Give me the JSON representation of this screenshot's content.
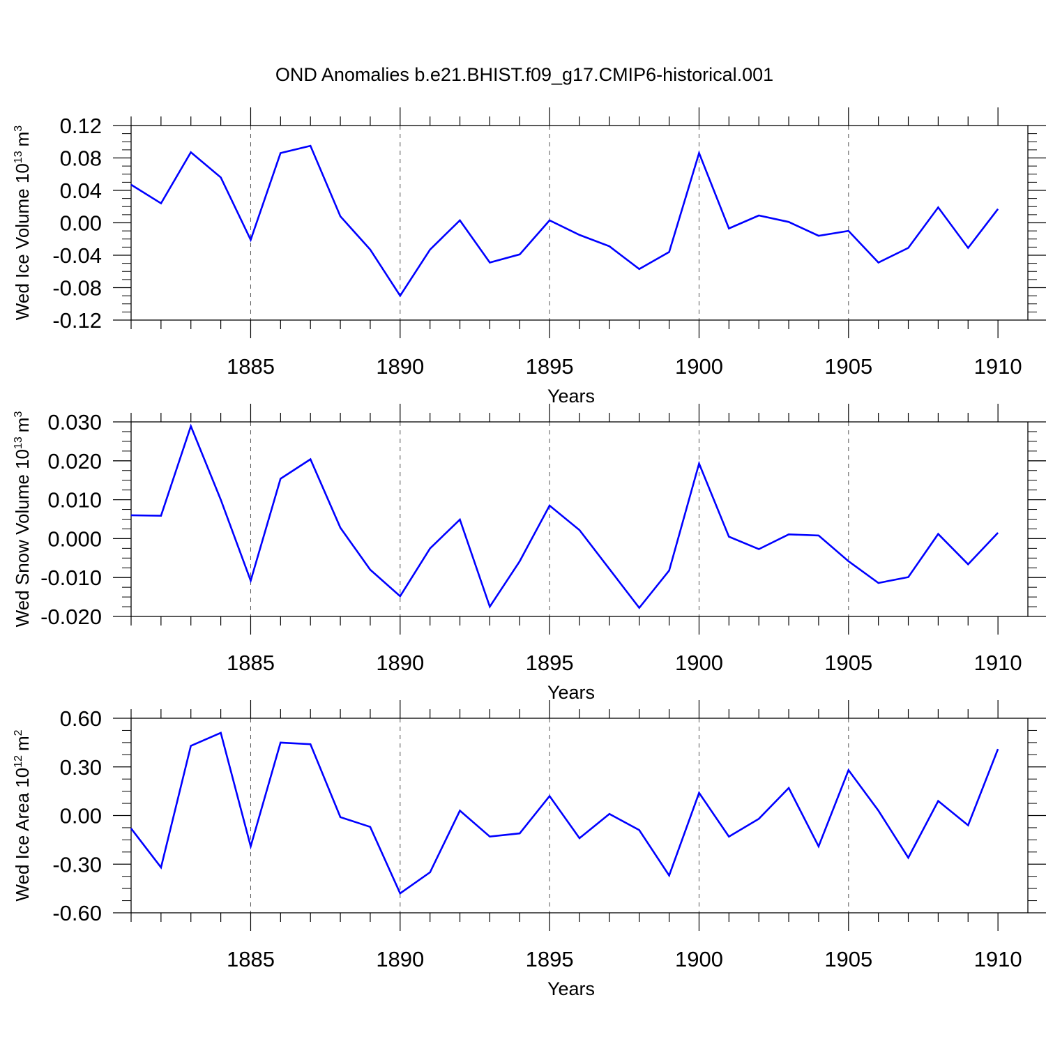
{
  "figure_title": "OND Anomalies b.e21.BHIST.f09_g17.CMIP6-historical.001",
  "line_color": "#0000ff",
  "chart_data": [
    {
      "type": "line",
      "title": "",
      "ylabel": "Wed Ice Volume 10",
      "ylabel_exp": "13",
      "ylabel_unit": "m",
      "ylabel_unit_exp": "3",
      "xlabel": "Years",
      "xlim": [
        1881,
        1910
      ],
      "ylim": [
        -0.12,
        0.12
      ],
      "yticks": [
        0.12,
        0.08,
        0.04,
        0.0,
        -0.04,
        -0.08,
        -0.12
      ],
      "ytick_labels": [
        "0.12",
        "0.08",
        "0.04",
        "0.00",
        "-0.04",
        "-0.08",
        "-0.12"
      ],
      "xticks": [
        1885,
        1890,
        1895,
        1900,
        1905,
        1910
      ],
      "xtick_labels": [
        "1885",
        "1890",
        "1895",
        "1900",
        "1905",
        "1910"
      ],
      "x": [
        1881,
        1882,
        1883,
        1884,
        1885,
        1886,
        1887,
        1888,
        1889,
        1890,
        1891,
        1892,
        1893,
        1894,
        1895,
        1896,
        1897,
        1898,
        1899,
        1900,
        1901,
        1902,
        1903,
        1904,
        1905,
        1906,
        1907,
        1908,
        1909,
        1910
      ],
      "values": [
        0.047,
        0.024,
        0.087,
        0.056,
        -0.021,
        0.086,
        0.095,
        0.008,
        -0.033,
        -0.09,
        -0.033,
        0.003,
        -0.049,
        -0.039,
        0.003,
        -0.015,
        -0.029,
        -0.057,
        -0.036,
        0.086,
        -0.007,
        0.009,
        0.001,
        -0.016,
        -0.01,
        -0.049,
        -0.031,
        0.019,
        -0.031,
        0.017
      ]
    },
    {
      "type": "line",
      "title": "",
      "ylabel": "Wed Snow Volume 10",
      "ylabel_exp": "13",
      "ylabel_unit": "m",
      "ylabel_unit_exp": "3",
      "xlabel": "Years",
      "xlim": [
        1881,
        1910
      ],
      "ylim": [
        -0.02,
        0.03
      ],
      "yticks": [
        0.03,
        0.02,
        0.01,
        0.0,
        -0.01,
        -0.02
      ],
      "ytick_labels": [
        "0.030",
        "0.020",
        "0.010",
        "0.000",
        "-0.010",
        "-0.020"
      ],
      "xticks": [
        1885,
        1890,
        1895,
        1900,
        1905,
        1910
      ],
      "xtick_labels": [
        "1885",
        "1890",
        "1895",
        "1900",
        "1905",
        "1910"
      ],
      "x": [
        1881,
        1882,
        1883,
        1884,
        1885,
        1886,
        1887,
        1888,
        1889,
        1890,
        1891,
        1892,
        1893,
        1894,
        1895,
        1896,
        1897,
        1898,
        1899,
        1900,
        1901,
        1902,
        1903,
        1904,
        1905,
        1906,
        1907,
        1908,
        1909,
        1910
      ],
      "values": [
        0.006,
        0.0059,
        0.0289,
        0.01,
        -0.0108,
        0.0154,
        0.0204,
        0.0028,
        -0.008,
        -0.0148,
        -0.0025,
        0.0049,
        -0.0175,
        -0.0058,
        0.0085,
        0.0022,
        -0.0078,
        -0.0178,
        -0.0082,
        0.0193,
        0.0005,
        -0.0027,
        0.0011,
        0.0008,
        -0.0058,
        -0.0114,
        -0.0099,
        0.0012,
        -0.0066,
        0.0015
      ]
    },
    {
      "type": "line",
      "title": "",
      "ylabel": "Wed Ice Area 10",
      "ylabel_exp": "12",
      "ylabel_unit": "m",
      "ylabel_unit_exp": "2",
      "xlabel": "Years",
      "xlim": [
        1881,
        1910
      ],
      "ylim": [
        -0.6,
        0.6
      ],
      "yticks": [
        0.6,
        0.3,
        0.0,
        -0.3,
        -0.6
      ],
      "ytick_labels": [
        "0.60",
        "0.30",
        "0.00",
        "-0.30",
        "-0.60"
      ],
      "xticks": [
        1885,
        1890,
        1895,
        1900,
        1905,
        1910
      ],
      "xtick_labels": [
        "1885",
        "1890",
        "1895",
        "1900",
        "1905",
        "1910"
      ],
      "x": [
        1881,
        1882,
        1883,
        1884,
        1885,
        1886,
        1887,
        1888,
        1889,
        1890,
        1891,
        1892,
        1893,
        1894,
        1895,
        1896,
        1897,
        1898,
        1899,
        1900,
        1901,
        1902,
        1903,
        1904,
        1905,
        1906,
        1907,
        1908,
        1909,
        1910
      ],
      "values": [
        -0.08,
        -0.32,
        0.43,
        0.51,
        -0.19,
        0.45,
        0.44,
        -0.01,
        -0.07,
        -0.48,
        -0.35,
        0.03,
        -0.13,
        -0.11,
        0.12,
        -0.14,
        0.01,
        -0.09,
        -0.37,
        0.14,
        -0.13,
        -0.02,
        0.17,
        -0.19,
        0.28,
        0.03,
        -0.26,
        0.09,
        -0.06,
        0.41
      ]
    }
  ]
}
